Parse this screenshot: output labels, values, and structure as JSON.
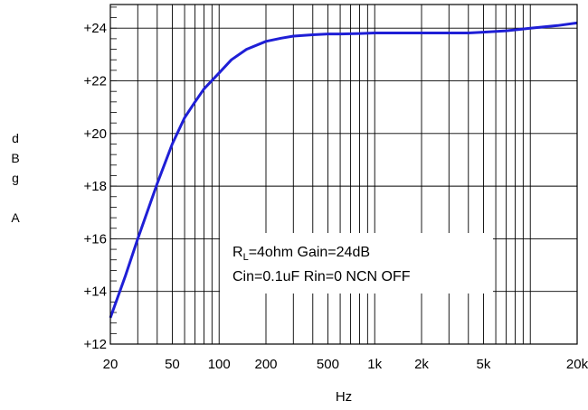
{
  "chart_data": {
    "type": "line",
    "xlabel": "Hz",
    "ylabel_chars": [
      "d",
      "B",
      "g",
      "",
      "A"
    ],
    "x_scale": "log",
    "xlim": [
      20,
      20000
    ],
    "ylim": [
      12,
      24.9
    ],
    "x_ticks": [
      {
        "value": 20,
        "label": "20"
      },
      {
        "value": 50,
        "label": "50"
      },
      {
        "value": 100,
        "label": "100"
      },
      {
        "value": 200,
        "label": "200"
      },
      {
        "value": 500,
        "label": "500"
      },
      {
        "value": 1000,
        "label": "1k"
      },
      {
        "value": 2000,
        "label": "2k"
      },
      {
        "value": 5000,
        "label": "5k"
      },
      {
        "value": 20000,
        "label": "20k"
      }
    ],
    "y_ticks": [
      {
        "value": 12,
        "label": "+12"
      },
      {
        "value": 14,
        "label": "+14"
      },
      {
        "value": 16,
        "label": "+16"
      },
      {
        "value": 18,
        "label": "+18"
      },
      {
        "value": 20,
        "label": "+20"
      },
      {
        "value": 22,
        "label": "+22"
      },
      {
        "value": 24,
        "label": "+24"
      }
    ],
    "grid": true,
    "series": [
      {
        "color": "#1f1fd6",
        "x": [
          20,
          25,
          30,
          40,
          50,
          60,
          70,
          80,
          100,
          120,
          150,
          200,
          250,
          300,
          400,
          500,
          600,
          800,
          1000,
          1500,
          2000,
          3000,
          4000,
          5000,
          7000,
          10000,
          15000,
          20000
        ],
        "y": [
          13.0,
          14.6,
          16.0,
          18.1,
          19.6,
          20.6,
          21.2,
          21.7,
          22.3,
          22.8,
          23.2,
          23.5,
          23.62,
          23.7,
          23.75,
          23.78,
          23.78,
          23.8,
          23.82,
          23.82,
          23.82,
          23.82,
          23.82,
          23.85,
          23.9,
          24.0,
          24.1,
          24.2
        ]
      }
    ],
    "annotation": {
      "line1_main": "R",
      "line1_sub": "L",
      "line1_rest": "=4ohm Gain=24dB",
      "line2": "Cin=0.1uF Rin=0 NCN OFF"
    }
  }
}
